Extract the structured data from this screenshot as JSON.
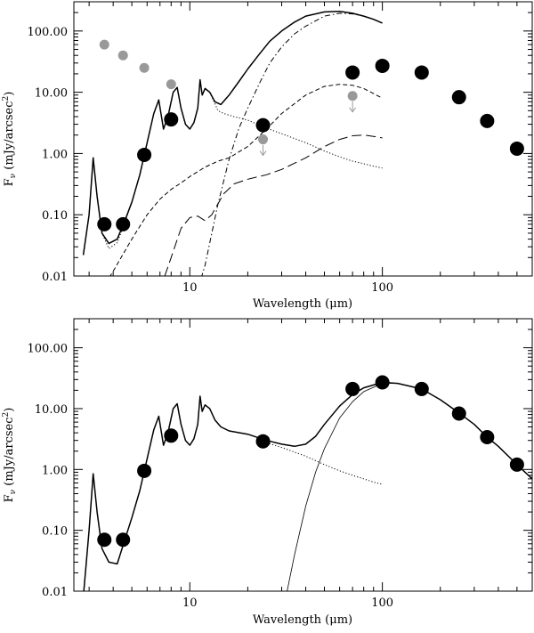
{
  "chart_data": [
    {
      "type": "scatter",
      "xscale": "log",
      "yscale": "log",
      "xlim": [
        2.5,
        600
      ],
      "ylim": [
        0.01,
        300
      ],
      "xlabel": "Wavelength (μm)",
      "ylabel_main": "F",
      "ylabel_sub": "ν",
      "ylabel_unit": " (mJy/arcsec",
      "ylabel_sup": "2",
      "ylabel_end": ")",
      "xticks": [
        {
          "value": 10,
          "label": "10"
        },
        {
          "value": 100,
          "label": "100"
        }
      ],
      "yticks": [
        {
          "value": 0.01,
          "label": "0.01"
        },
        {
          "value": 0.1,
          "label": "0.10"
        },
        {
          "value": 1,
          "label": "1.00"
        },
        {
          "value": 10,
          "label": "10.00"
        },
        {
          "value": 100,
          "label": "100.00"
        }
      ],
      "grid": false,
      "points_black": {
        "color": "#000000",
        "x": [
          3.6,
          4.5,
          5.8,
          8.0,
          24,
          70,
          100,
          160,
          250,
          350,
          500
        ],
        "y": [
          0.07,
          0.07,
          0.95,
          3.6,
          2.9,
          21,
          27,
          21,
          8.3,
          3.4,
          1.2
        ]
      },
      "points_gray": {
        "color": "#999999",
        "x": [
          3.6,
          4.5,
          5.8,
          8.0,
          24,
          70
        ],
        "y": [
          60,
          40,
          25,
          13.5,
          1.7,
          8.7
        ],
        "upper_limit_index": [
          4,
          5
        ]
      },
      "curves": [
        {
          "style": "solid",
          "x": [
            2.8,
            3.0,
            3.15,
            3.3,
            3.5,
            3.8,
            4.2,
            4.6,
            5.0,
            5.5,
            6.0,
            6.5,
            6.9,
            7.3,
            7.7,
            8.2,
            8.6,
            9.0,
            9.5,
            10.0,
            10.5,
            11.0,
            11.3,
            11.6,
            12.0,
            12.7,
            13.5,
            14.5,
            16.0,
            18.0,
            20.0,
            23.0,
            26.0,
            30.0,
            35.0,
            40.0,
            50.0,
            60.0,
            70.0,
            80.0,
            90.0,
            100.0
          ],
          "y": [
            0.022,
            0.1,
            0.85,
            0.2,
            0.05,
            0.034,
            0.04,
            0.08,
            0.16,
            0.45,
            1.5,
            4.5,
            7.5,
            2.5,
            4.0,
            10.0,
            12.0,
            5.5,
            3.0,
            2.5,
            3.2,
            5.5,
            16.0,
            9.0,
            11.5,
            10.0,
            7.0,
            6.3,
            9.0,
            15.0,
            24.0,
            42.0,
            68.0,
            100.0,
            140.0,
            175.0,
            205.0,
            210.0,
            195.0,
            175.0,
            155.0,
            135.0
          ]
        },
        {
          "style": "dotted",
          "x": [
            2.8,
            3.0,
            3.15,
            3.3,
            3.5,
            3.8,
            4.2,
            4.6,
            5.0,
            5.5,
            6.0,
            6.5,
            6.9,
            7.3,
            7.7,
            8.2,
            8.6,
            9.0,
            9.5,
            10.0,
            10.5,
            11.0,
            11.3,
            11.6,
            12.0,
            12.7,
            13.5,
            14.0,
            15.0,
            17.0,
            20.0,
            25.0,
            30.0,
            40.0,
            50.0,
            60.0,
            70.0,
            80.0,
            90.0,
            100.0
          ],
          "y": [
            0.022,
            0.1,
            0.85,
            0.2,
            0.05,
            0.028,
            0.035,
            0.075,
            0.16,
            0.45,
            1.5,
            4.5,
            7.5,
            2.5,
            4.0,
            10.0,
            12.0,
            5.5,
            3.0,
            2.5,
            3.2,
            5.5,
            16.0,
            9.0,
            11.5,
            10.0,
            6.5,
            5.0,
            4.5,
            4.0,
            3.5,
            2.6,
            2.1,
            1.5,
            1.1,
            0.88,
            0.75,
            0.68,
            0.62,
            0.58
          ]
        },
        {
          "style": "dashed",
          "x": [
            3.5,
            4.0,
            5.0,
            6.0,
            7.0,
            8.0,
            9.0,
            10.0,
            12.0,
            14.0,
            16.0,
            20.0,
            25.0,
            30.0,
            40.0,
            50.0,
            60.0,
            70.0,
            80.0,
            90.0,
            100.0
          ],
          "y": [
            0.006,
            0.012,
            0.04,
            0.1,
            0.18,
            0.26,
            0.33,
            0.42,
            0.6,
            0.75,
            0.85,
            1.3,
            2.5,
            4.5,
            9.0,
            12.5,
            13.5,
            13.0,
            11.5,
            9.5,
            8.0
          ]
        },
        {
          "style": "longdash",
          "x": [
            7.0,
            8.0,
            9.0,
            10.0,
            11.0,
            12.0,
            13.0,
            15.0,
            17.0,
            20.0,
            25.0,
            30.0,
            40.0,
            50.0,
            60.0,
            70.0,
            80.0,
            90.0,
            100.0
          ],
          "y": [
            0.006,
            0.02,
            0.06,
            0.09,
            0.095,
            0.08,
            0.1,
            0.22,
            0.32,
            0.38,
            0.45,
            0.55,
            0.85,
            1.3,
            1.7,
            1.95,
            2.0,
            1.9,
            1.8
          ]
        },
        {
          "style": "dashdot",
          "x": [
            11.0,
            12.0,
            14.0,
            16.0,
            18.0,
            20.0,
            23.0,
            26.0,
            30.0,
            35.0,
            40.0,
            50.0,
            60.0,
            70.0,
            80.0,
            90.0,
            100.0
          ],
          "y": [
            0.006,
            0.015,
            0.15,
            0.8,
            2.6,
            5.5,
            14.0,
            30.0,
            55.0,
            90.0,
            120.0,
            175.0,
            195.0,
            190.0,
            175.0,
            155.0,
            135.0
          ]
        }
      ]
    },
    {
      "type": "scatter",
      "xscale": "log",
      "yscale": "log",
      "xlim": [
        2.5,
        600
      ],
      "ylim": [
        0.01,
        300
      ],
      "xlabel": "Wavelength (μm)",
      "ylabel_main": "F",
      "ylabel_sub": "ν",
      "ylabel_unit": " (mJy/arcsec",
      "ylabel_sup": "2",
      "ylabel_end": ")",
      "xticks": [
        {
          "value": 10,
          "label": "10"
        },
        {
          "value": 100,
          "label": "100"
        }
      ],
      "yticks": [
        {
          "value": 0.01,
          "label": "0.01"
        },
        {
          "value": 0.1,
          "label": "0.10"
        },
        {
          "value": 1,
          "label": "1.00"
        },
        {
          "value": 10,
          "label": "10.00"
        },
        {
          "value": 100,
          "label": "100.00"
        }
      ],
      "grid": false,
      "points_black": {
        "color": "#000000",
        "x": [
          3.6,
          4.5,
          5.8,
          8.0,
          24,
          70,
          100,
          160,
          250,
          350,
          500
        ],
        "y": [
          0.07,
          0.07,
          0.95,
          3.6,
          2.9,
          21,
          27,
          21,
          8.3,
          3.4,
          1.2
        ]
      },
      "curves": [
        {
          "style": "solid",
          "x": [
            2.8,
            3.0,
            3.15,
            3.3,
            3.5,
            3.8,
            4.2,
            4.6,
            5.0,
            5.5,
            6.0,
            6.5,
            6.9,
            7.3,
            7.7,
            8.2,
            8.6,
            9.0,
            9.5,
            10.0,
            10.5,
            11.0,
            11.3,
            11.6,
            12.0,
            12.7,
            13.5,
            14.5,
            16.0,
            20.0,
            25.0,
            30.0,
            35.0,
            40.0,
            45.0,
            50.0,
            60.0,
            70.0,
            80.0,
            100.0,
            120.0,
            160.0,
            200.0,
            250.0,
            300.0,
            350.0,
            400.0,
            500.0,
            600.0
          ],
          "y": [
            0.008,
            0.1,
            0.85,
            0.2,
            0.05,
            0.03,
            0.028,
            0.07,
            0.16,
            0.45,
            1.5,
            4.5,
            7.5,
            2.5,
            4.0,
            10.0,
            12.0,
            5.5,
            3.0,
            2.5,
            3.2,
            5.5,
            16.0,
            9.0,
            11.5,
            10.0,
            6.5,
            5.0,
            4.3,
            3.8,
            3.0,
            2.6,
            2.4,
            2.6,
            3.5,
            5.5,
            11.0,
            17.0,
            22.0,
            27.0,
            26.0,
            21.0,
            14.0,
            8.5,
            5.5,
            3.4,
            2.4,
            1.2,
            0.7
          ]
        },
        {
          "style": "dotted",
          "x": [
            25.0,
            30.0,
            40.0,
            50.0,
            60.0,
            70.0,
            80.0,
            90.0,
            100.0
          ],
          "y": [
            2.75,
            2.3,
            1.65,
            1.2,
            0.95,
            0.8,
            0.7,
            0.62,
            0.57
          ]
        },
        {
          "style": "thin",
          "x": [
            32.0,
            35.0,
            40.0,
            45.0,
            50.0,
            60.0,
            70.0,
            80.0,
            100.0,
            120.0,
            160.0,
            200.0,
            250.0,
            300.0,
            350.0,
            400.0,
            500.0,
            600.0
          ],
          "y": [
            0.01,
            0.04,
            0.25,
            0.9,
            2.2,
            7.0,
            13.0,
            19.0,
            26.0,
            26.0,
            21.0,
            14.0,
            8.5,
            5.5,
            3.4,
            2.4,
            1.2,
            0.7
          ]
        }
      ]
    }
  ]
}
